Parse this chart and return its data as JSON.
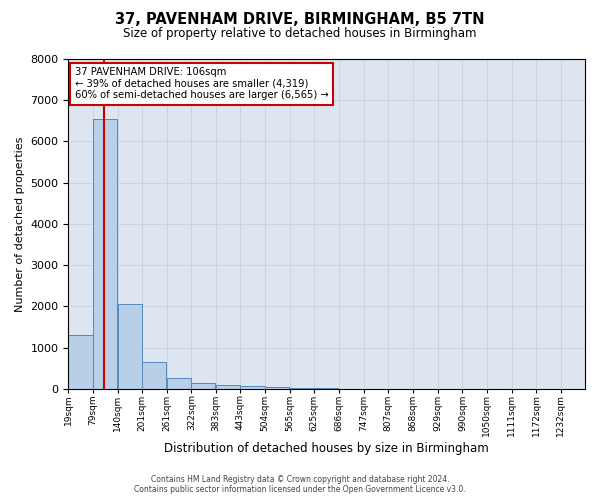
{
  "title": "37, PAVENHAM DRIVE, BIRMINGHAM, B5 7TN",
  "subtitle": "Size of property relative to detached houses in Birmingham",
  "xlabel": "Distribution of detached houses by size in Birmingham",
  "ylabel": "Number of detached properties",
  "bin_labels": [
    "19sqm",
    "79sqm",
    "140sqm",
    "201sqm",
    "261sqm",
    "322sqm",
    "383sqm",
    "443sqm",
    "504sqm",
    "565sqm",
    "625sqm",
    "686sqm",
    "747sqm",
    "807sqm",
    "868sqm",
    "929sqm",
    "990sqm",
    "1050sqm",
    "1111sqm",
    "1172sqm",
    "1232sqm"
  ],
  "bin_edges": [
    19,
    79,
    140,
    201,
    261,
    322,
    383,
    443,
    504,
    565,
    625,
    686,
    747,
    807,
    868,
    929,
    990,
    1050,
    1111,
    1172,
    1232
  ],
  "bar_heights": [
    1300,
    6550,
    2050,
    650,
    250,
    130,
    80,
    60,
    50,
    20,
    10,
    5,
    3,
    2,
    1,
    1,
    0,
    0,
    0,
    0
  ],
  "bar_color": "#b8cfe8",
  "bar_edge_color": "#5588bb",
  "grid_color": "#c8d0dc",
  "background_color": "#dde5f0",
  "property_size": 106,
  "property_label": "37 PAVENHAM DRIVE: 106sqm",
  "annotation_line1": "← 39% of detached houses are smaller (4,319)",
  "annotation_line2": "60% of semi-detached houses are larger (6,565) →",
  "vline_color": "#cc0000",
  "ylim_max": 8000,
  "yticks": [
    0,
    1000,
    2000,
    3000,
    4000,
    5000,
    6000,
    7000,
    8000
  ],
  "footnote1": "Contains HM Land Registry data © Crown copyright and database right 2024.",
  "footnote2": "Contains public sector information licensed under the Open Government Licence v3.0."
}
